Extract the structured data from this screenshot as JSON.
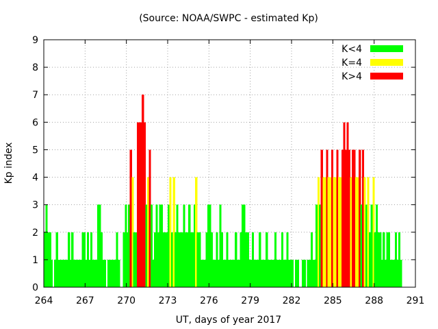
{
  "chart_data": {
    "type": "bar",
    "title": "(Source: NOAA/SWPC - estimated Kp)",
    "xlabel": "UT, days of year 2017",
    "ylabel": "Kp index",
    "xlim": [
      264,
      291
    ],
    "ylim": [
      0,
      9
    ],
    "x_ticks": [
      "264",
      "267",
      "270",
      "273",
      "276",
      "279",
      "282",
      "285",
      "288",
      "291"
    ],
    "y_ticks": [
      "0",
      "1",
      "2",
      "3",
      "4",
      "5",
      "6",
      "7",
      "8",
      "9"
    ],
    "grid": true,
    "legend_position": "top-right",
    "bar_width_days": 0.125,
    "series": [
      {
        "name": "K<4",
        "color": "#00ff00"
      },
      {
        "name": "K=4",
        "color": "#ffff00"
      },
      {
        "name": "K>4",
        "color": "#ff0000"
      }
    ],
    "bars": [
      [
        264.0,
        2
      ],
      [
        264.12,
        3
      ],
      [
        264.25,
        2
      ],
      [
        264.38,
        2
      ],
      [
        264.5,
        1
      ],
      [
        264.62,
        0
      ],
      [
        264.75,
        1
      ],
      [
        264.88,
        2
      ],
      [
        265.0,
        1
      ],
      [
        265.12,
        1
      ],
      [
        265.25,
        1
      ],
      [
        265.38,
        1
      ],
      [
        265.5,
        1
      ],
      [
        265.62,
        1
      ],
      [
        265.75,
        2
      ],
      [
        265.88,
        1
      ],
      [
        266.0,
        2
      ],
      [
        266.12,
        1
      ],
      [
        266.25,
        1
      ],
      [
        266.38,
        1
      ],
      [
        266.5,
        1
      ],
      [
        266.62,
        1
      ],
      [
        266.75,
        2
      ],
      [
        266.88,
        2
      ],
      [
        267.0,
        1
      ],
      [
        267.12,
        2
      ],
      [
        267.25,
        1
      ],
      [
        267.38,
        2
      ],
      [
        267.5,
        1
      ],
      [
        267.62,
        1
      ],
      [
        267.75,
        1
      ],
      [
        267.88,
        3
      ],
      [
        268.0,
        3
      ],
      [
        268.12,
        2
      ],
      [
        268.25,
        1
      ],
      [
        268.38,
        1
      ],
      [
        268.5,
        0
      ],
      [
        268.62,
        1
      ],
      [
        268.75,
        1
      ],
      [
        268.88,
        1
      ],
      [
        269.0,
        1
      ],
      [
        269.12,
        1
      ],
      [
        269.25,
        2
      ],
      [
        269.38,
        1
      ],
      [
        269.5,
        0
      ],
      [
        269.62,
        0
      ],
      [
        269.75,
        2
      ],
      [
        269.88,
        3
      ],
      [
        270.0,
        2
      ],
      [
        270.12,
        3
      ],
      [
        270.25,
        5
      ],
      [
        270.38,
        4
      ],
      [
        270.5,
        2
      ],
      [
        270.62,
        2
      ],
      [
        270.75,
        6
      ],
      [
        270.88,
        6
      ],
      [
        271.0,
        6
      ],
      [
        271.12,
        7
      ],
      [
        271.25,
        6
      ],
      [
        271.38,
        3
      ],
      [
        271.5,
        4
      ],
      [
        271.62,
        5
      ],
      [
        271.75,
        3
      ],
      [
        271.88,
        1
      ],
      [
        272.0,
        2
      ],
      [
        272.12,
        3
      ],
      [
        272.25,
        2
      ],
      [
        272.38,
        3
      ],
      [
        272.5,
        3
      ],
      [
        272.62,
        2
      ],
      [
        272.75,
        2
      ],
      [
        272.88,
        2
      ],
      [
        273.0,
        3
      ],
      [
        273.12,
        4
      ],
      [
        273.25,
        2
      ],
      [
        273.38,
        4
      ],
      [
        273.5,
        2
      ],
      [
        273.62,
        3
      ],
      [
        273.75,
        2
      ],
      [
        273.88,
        2
      ],
      [
        274.0,
        2
      ],
      [
        274.12,
        3
      ],
      [
        274.25,
        2
      ],
      [
        274.38,
        2
      ],
      [
        274.5,
        3
      ],
      [
        274.62,
        2
      ],
      [
        274.75,
        2
      ],
      [
        274.88,
        3
      ],
      [
        275.0,
        4
      ],
      [
        275.12,
        2
      ],
      [
        275.25,
        2
      ],
      [
        275.38,
        1
      ],
      [
        275.5,
        1
      ],
      [
        275.62,
        1
      ],
      [
        275.75,
        2
      ],
      [
        275.88,
        3
      ],
      [
        276.0,
        3
      ],
      [
        276.12,
        2
      ],
      [
        276.25,
        1
      ],
      [
        276.38,
        1
      ],
      [
        276.5,
        2
      ],
      [
        276.62,
        1
      ],
      [
        276.75,
        3
      ],
      [
        276.88,
        2
      ],
      [
        277.0,
        1
      ],
      [
        277.12,
        1
      ],
      [
        277.25,
        2
      ],
      [
        277.38,
        1
      ],
      [
        277.5,
        1
      ],
      [
        277.62,
        1
      ],
      [
        277.75,
        1
      ],
      [
        277.88,
        2
      ],
      [
        278.0,
        1
      ],
      [
        278.12,
        1
      ],
      [
        278.25,
        2
      ],
      [
        278.38,
        3
      ],
      [
        278.5,
        3
      ],
      [
        278.62,
        2
      ],
      [
        278.75,
        2
      ],
      [
        278.88,
        1
      ],
      [
        279.0,
        1
      ],
      [
        279.12,
        2
      ],
      [
        279.25,
        1
      ],
      [
        279.38,
        1
      ],
      [
        279.5,
        1
      ],
      [
        279.62,
        2
      ],
      [
        279.75,
        1
      ],
      [
        279.88,
        1
      ],
      [
        280.0,
        1
      ],
      [
        280.12,
        2
      ],
      [
        280.25,
        1
      ],
      [
        280.38,
        1
      ],
      [
        280.5,
        1
      ],
      [
        280.62,
        1
      ],
      [
        280.75,
        2
      ],
      [
        280.88,
        1
      ],
      [
        281.0,
        1
      ],
      [
        281.12,
        1
      ],
      [
        281.25,
        2
      ],
      [
        281.38,
        1
      ],
      [
        281.5,
        1
      ],
      [
        281.62,
        2
      ],
      [
        281.75,
        1
      ],
      [
        281.88,
        1
      ],
      [
        282.0,
        1
      ],
      [
        282.12,
        0
      ],
      [
        282.25,
        1
      ],
      [
        282.38,
        1
      ],
      [
        282.5,
        0
      ],
      [
        282.62,
        0
      ],
      [
        282.75,
        1
      ],
      [
        282.88,
        1
      ],
      [
        283.0,
        0
      ],
      [
        283.12,
        1
      ],
      [
        283.25,
        1
      ],
      [
        283.38,
        2
      ],
      [
        283.5,
        1
      ],
      [
        283.62,
        1
      ],
      [
        283.75,
        3
      ],
      [
        283.88,
        4
      ],
      [
        284.0,
        3
      ],
      [
        284.12,
        5
      ],
      [
        284.25,
        4
      ],
      [
        284.38,
        4
      ],
      [
        284.5,
        5
      ],
      [
        284.62,
        4
      ],
      [
        284.75,
        4
      ],
      [
        284.88,
        5
      ],
      [
        285.0,
        4
      ],
      [
        285.12,
        4
      ],
      [
        285.25,
        5
      ],
      [
        285.38,
        4
      ],
      [
        285.5,
        4
      ],
      [
        285.62,
        5
      ],
      [
        285.75,
        6
      ],
      [
        285.88,
        5
      ],
      [
        286.0,
        6
      ],
      [
        286.12,
        5
      ],
      [
        286.25,
        4
      ],
      [
        286.38,
        5
      ],
      [
        286.5,
        5
      ],
      [
        286.62,
        4
      ],
      [
        286.75,
        4
      ],
      [
        286.88,
        5
      ],
      [
        287.0,
        3
      ],
      [
        287.12,
        5
      ],
      [
        287.25,
        4
      ],
      [
        287.38,
        3
      ],
      [
        287.5,
        4
      ],
      [
        287.62,
        2
      ],
      [
        287.75,
        3
      ],
      [
        287.88,
        4
      ],
      [
        288.0,
        2
      ],
      [
        288.12,
        3
      ],
      [
        288.25,
        2
      ],
      [
        288.38,
        2
      ],
      [
        288.5,
        1
      ],
      [
        288.62,
        2
      ],
      [
        288.75,
        1
      ],
      [
        288.88,
        2
      ],
      [
        289.0,
        2
      ],
      [
        289.12,
        1
      ],
      [
        289.25,
        1
      ],
      [
        289.38,
        1
      ],
      [
        289.5,
        2
      ],
      [
        289.62,
        1
      ],
      [
        289.75,
        2
      ],
      [
        289.88,
        1
      ]
    ]
  }
}
